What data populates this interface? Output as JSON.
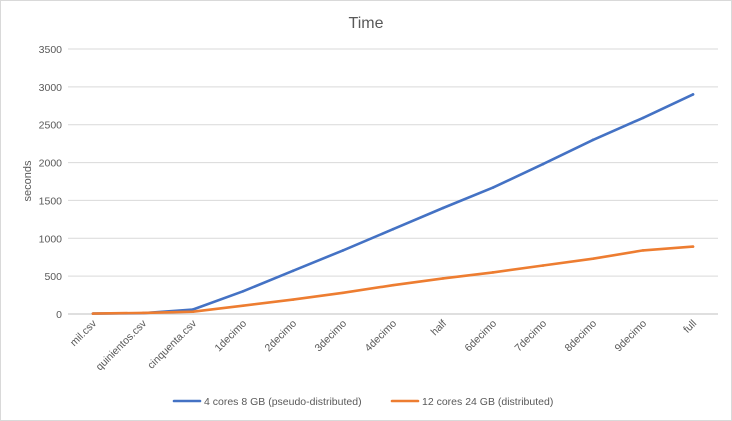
{
  "chart_data": {
    "type": "line",
    "title": "Time",
    "xlabel": "",
    "ylabel": "seconds",
    "ylim": [
      0,
      3500
    ],
    "yticks": [
      0,
      500,
      1000,
      1500,
      2000,
      2500,
      3000,
      3500
    ],
    "grid": true,
    "legend_position": "bottom",
    "categories": [
      "mil.csv",
      "quinientos.csv",
      "cinquenta.csv",
      "1decimo",
      "2decimo",
      "3decimo",
      "4decimo",
      "half",
      "6decimo",
      "7decimo",
      "8decimo",
      "9decimo",
      "full"
    ],
    "series": [
      {
        "name": "4 cores 8 GB (pseudo-distributed)",
        "color": "#4472c4",
        "values": [
          5,
          10,
          60,
          300,
          570,
          840,
          1120,
          1400,
          1670,
          1980,
          2300,
          2590,
          2900
        ]
      },
      {
        "name": "12 cores 24 GB (distributed)",
        "color": "#ed7d31",
        "values": [
          5,
          15,
          30,
          110,
          190,
          280,
          380,
          470,
          550,
          640,
          730,
          840,
          890
        ]
      }
    ]
  }
}
